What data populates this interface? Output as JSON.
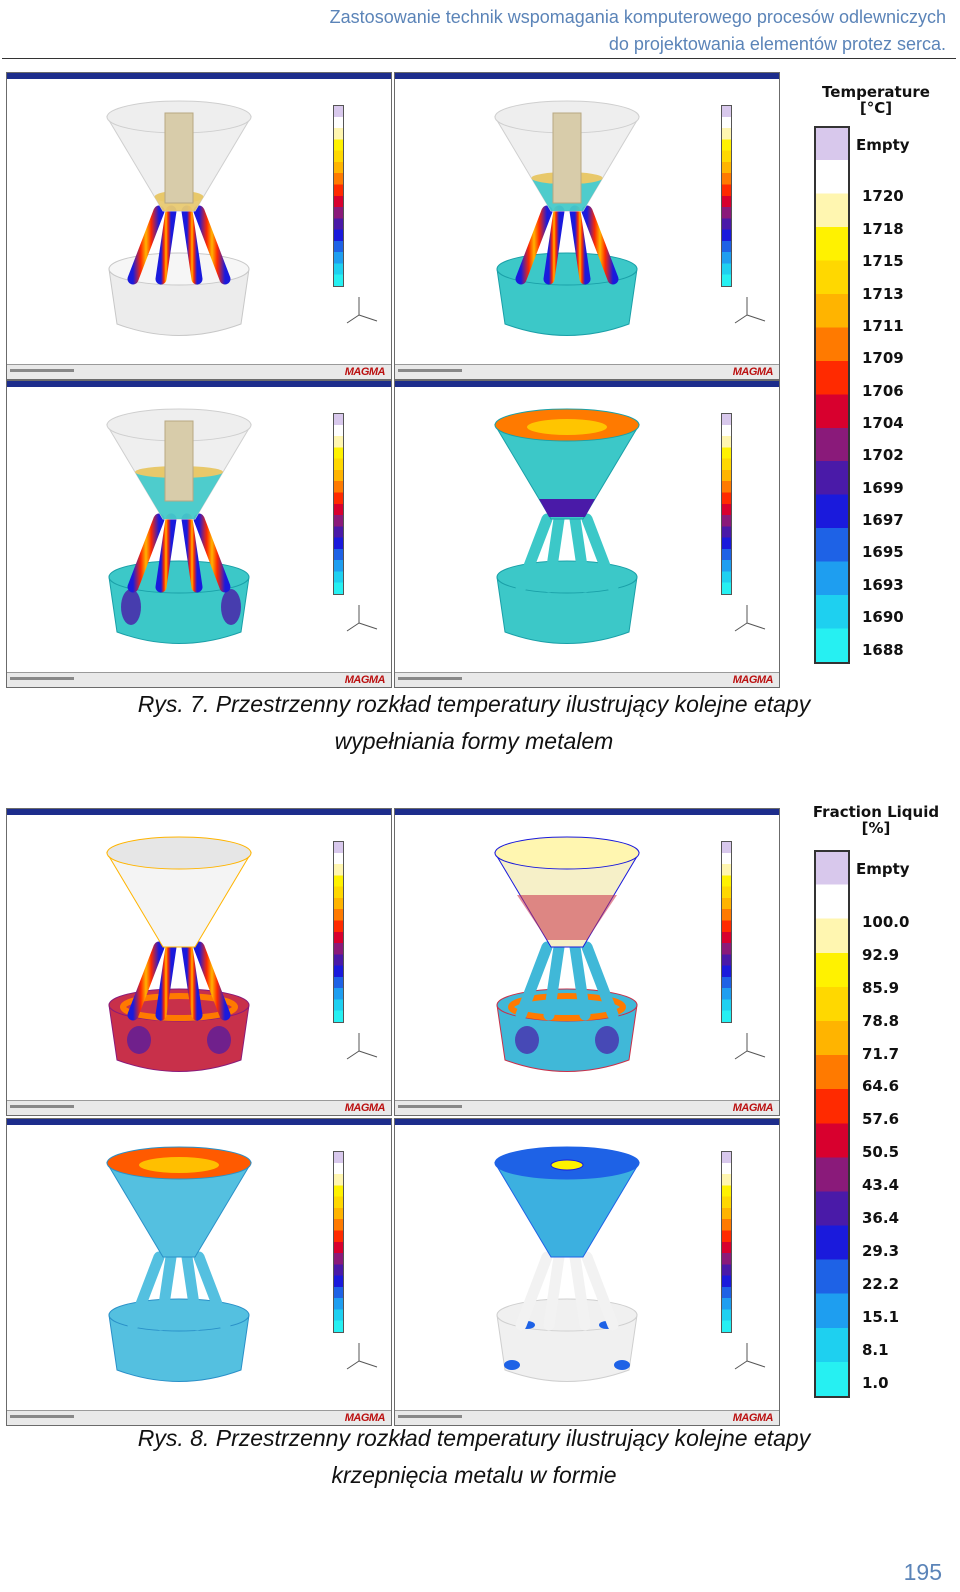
{
  "header": {
    "line1": "Zastosowanie technik wspomagania komputerowego procesów odlewniczych",
    "line2": "do projektowania elementów protez serca."
  },
  "figure7": {
    "legend_title_1": "Temperature",
    "legend_title_2": "[°C]",
    "legend_empty": "Empty",
    "legend_values": [
      "1720",
      "1718",
      "1715",
      "1713",
      "1711",
      "1709",
      "1706",
      "1704",
      "1702",
      "1699",
      "1697",
      "1695",
      "1693",
      "1690",
      "1688"
    ],
    "caption_line1": "Rys. 7. Przestrzenny rozkład temperatury ilustrujący kolejne etapy",
    "caption_line2": "wypełniania formy metalem"
  },
  "figure8": {
    "legend_title_1": "Fraction Liquid",
    "legend_title_2": "[%]",
    "legend_empty": "Empty",
    "legend_values": [
      "100.0",
      "92.9",
      "85.9",
      "78.8",
      "71.7",
      "64.6",
      "57.6",
      "50.5",
      "43.4",
      "36.4",
      "29.3",
      "22.2",
      "15.1",
      "8.1",
      "1.0"
    ],
    "caption_line1": "Rys. 8. Przestrzenny rozkład temperatury ilustrujący kolejne etapy",
    "caption_line2": "krzepnięcia metalu w formie"
  },
  "logo_text": "MAGMA",
  "page_number": "195",
  "colors": {
    "header_text": "#5b84b8",
    "scale": [
      "#ffffff",
      "#fff6b0",
      "#fff200",
      "#ffd800",
      "#ffb400",
      "#ff7a00",
      "#ff2a00",
      "#d8002e",
      "#8a1a7a",
      "#4a1aa8",
      "#1a1adc",
      "#1e62e6",
      "#1e9ef0",
      "#1ed0f0",
      "#26f0f2"
    ],
    "empty": "#d8c8ec"
  }
}
